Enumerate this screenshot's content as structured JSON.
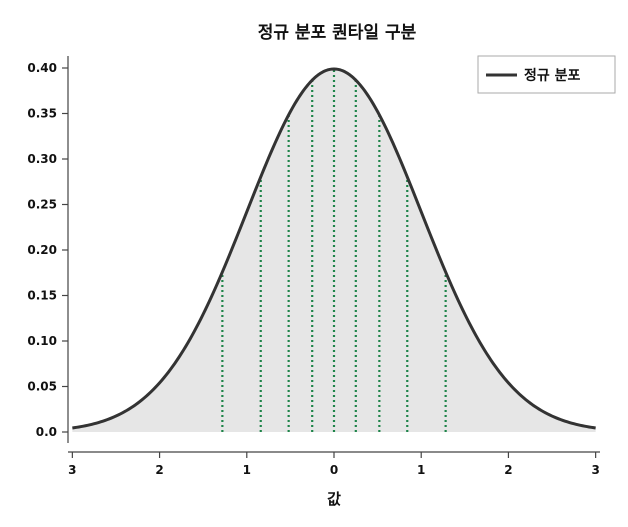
{
  "chart_data": {
    "type": "line",
    "title": "정규 분포 퀀타일 구분",
    "xlabel": "값",
    "ylabel": "",
    "xlim": [
      -3.05,
      3.05
    ],
    "ylim": [
      0,
      0.4
    ],
    "xticks": [
      -3,
      -2,
      -1,
      0,
      1,
      2,
      3
    ],
    "xtick_labels": [
      "3",
      "2",
      "1",
      "0",
      "1",
      "2",
      "3"
    ],
    "yticks": [
      0.0,
      0.05,
      0.1,
      0.15,
      0.2,
      0.25,
      0.3,
      0.35,
      0.4
    ],
    "ytick_labels": [
      "0.0",
      "0.05",
      "0.10",
      "0.15",
      "0.20",
      "0.25",
      "0.30",
      "0.35",
      "0.40"
    ],
    "series": [
      {
        "name": "정규 분포",
        "distribution": "normal",
        "mean": 0,
        "std": 1,
        "x_range": [
          -3,
          3
        ],
        "color": "#333333"
      }
    ],
    "fill_color": "#e6e6e6",
    "quantile_lines": {
      "x": [
        -1.28,
        -0.84,
        -0.52,
        -0.25,
        0,
        0.25,
        0.52,
        0.84,
        1.28
      ],
      "color": "#1e8449",
      "style": "dotted"
    },
    "legend_position": "top-right",
    "grid": false
  }
}
